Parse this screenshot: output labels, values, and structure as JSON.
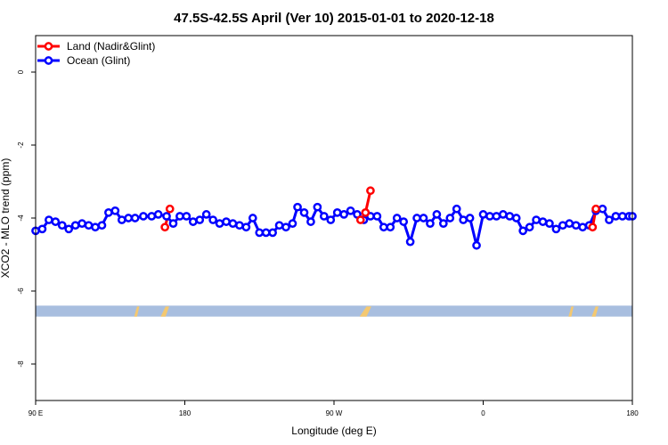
{
  "chart_data": {
    "type": "line",
    "title": "47.5S-42.5S April (Ver 10)   2015-01-01 to 2020-12-18",
    "xlabel": "Longitude (deg E)",
    "ylabel": "XCO2 - MLO trend (ppm)",
    "xlim": [
      90,
      450
    ],
    "ylim": [
      -9,
      1
    ],
    "x_ticks": [
      {
        "value": 90,
        "label": "90 E"
      },
      {
        "value": 180,
        "label": "180"
      },
      {
        "value": 270,
        "label": "90 W"
      },
      {
        "value": 360,
        "label": "0"
      },
      {
        "value": 450,
        "label": "180"
      }
    ],
    "y_ticks": [
      {
        "value": 0,
        "label": "0"
      },
      {
        "value": -2,
        "label": "-2"
      },
      {
        "value": -4,
        "label": "-4"
      },
      {
        "value": -6,
        "label": "-6"
      },
      {
        "value": -8,
        "label": "-8"
      }
    ],
    "legend_position": "top-left",
    "series": [
      {
        "name": "Land (Nadir&Glint)",
        "color": "#ff0000",
        "segments": [
          [
            [
              168,
              -4.25
            ],
            [
              171,
              -3.75
            ]
          ],
          [
            [
              286,
              -4.05
            ],
            [
              289,
              -3.85
            ],
            [
              292,
              -3.25
            ]
          ],
          [
            [
              426,
              -4.25
            ],
            [
              428,
              -3.75
            ]
          ]
        ]
      },
      {
        "name": "Ocean (Glint)",
        "color": "#0000ff",
        "segments": [
          [
            [
              90,
              -4.35
            ],
            [
              94,
              -4.3
            ],
            [
              98,
              -4.05
            ],
            [
              102,
              -4.1
            ],
            [
              106,
              -4.2
            ],
            [
              110,
              -4.3
            ],
            [
              114,
              -4.2
            ],
            [
              118,
              -4.15
            ],
            [
              122,
              -4.2
            ],
            [
              126,
              -4.25
            ],
            [
              130,
              -4.2
            ],
            [
              134,
              -3.85
            ],
            [
              138,
              -3.8
            ],
            [
              142,
              -4.05
            ],
            [
              146,
              -4.0
            ],
            [
              150,
              -4.0
            ],
            [
              155,
              -3.95
            ],
            [
              160,
              -3.95
            ],
            [
              164,
              -3.9
            ],
            [
              169,
              -3.95
            ],
            [
              173,
              -4.15
            ],
            [
              177,
              -3.95
            ],
            [
              181,
              -3.95
            ],
            [
              185,
              -4.1
            ],
            [
              189,
              -4.05
            ],
            [
              193,
              -3.9
            ],
            [
              197,
              -4.05
            ],
            [
              201,
              -4.15
            ],
            [
              205,
              -4.1
            ],
            [
              209,
              -4.15
            ],
            [
              213,
              -4.2
            ],
            [
              217,
              -4.25
            ],
            [
              221,
              -4.0
            ],
            [
              225,
              -4.4
            ],
            [
              229,
              -4.4
            ],
            [
              233,
              -4.4
            ],
            [
              237,
              -4.2
            ],
            [
              241,
              -4.25
            ],
            [
              245,
              -4.15
            ],
            [
              248,
              -3.7
            ],
            [
              252,
              -3.85
            ],
            [
              256,
              -4.1
            ],
            [
              260,
              -3.7
            ],
            [
              264,
              -3.95
            ],
            [
              268,
              -4.05
            ],
            [
              272,
              -3.85
            ],
            [
              276,
              -3.9
            ],
            [
              280,
              -3.8
            ],
            [
              284,
              -3.9
            ],
            [
              288,
              -4.05
            ],
            [
              292,
              -3.95
            ],
            [
              296,
              -3.95
            ],
            [
              300,
              -4.25
            ],
            [
              304,
              -4.25
            ],
            [
              308,
              -4.0
            ],
            [
              312,
              -4.1
            ],
            [
              316,
              -4.65
            ],
            [
              320,
              -4.0
            ],
            [
              324,
              -4.0
            ],
            [
              328,
              -4.15
            ],
            [
              332,
              -3.9
            ],
            [
              336,
              -4.15
            ],
            [
              340,
              -4.0
            ],
            [
              344,
              -3.75
            ],
            [
              348,
              -4.05
            ],
            [
              352,
              -4.0
            ],
            [
              356,
              -4.75
            ],
            [
              360,
              -3.9
            ],
            [
              364,
              -3.95
            ],
            [
              368,
              -3.95
            ],
            [
              372,
              -3.9
            ],
            [
              376,
              -3.95
            ],
            [
              380,
              -4.0
            ],
            [
              384,
              -4.35
            ],
            [
              388,
              -4.25
            ],
            [
              392,
              -4.05
            ],
            [
              396,
              -4.1
            ],
            [
              400,
              -4.15
            ],
            [
              404,
              -4.3
            ],
            [
              408,
              -4.2
            ],
            [
              412,
              -4.15
            ],
            [
              416,
              -4.2
            ],
            [
              420,
              -4.25
            ],
            [
              424,
              -4.2
            ],
            [
              428,
              -3.8
            ],
            [
              432,
              -3.75
            ],
            [
              436,
              -4.05
            ],
            [
              440,
              -3.95
            ],
            [
              444,
              -3.95
            ],
            [
              448,
              -3.95
            ],
            [
              452,
              -3.95
            ]
          ]
        ]
      }
    ]
  },
  "surface_strip": {
    "y_top": -6.4,
    "y_bottom": -6.7,
    "ocean_color": "#a8bedf",
    "land_color": "#f4c870",
    "land_patches": [
      [
        150,
        152
      ],
      [
        166,
        170
      ],
      [
        286,
        292
      ],
      [
        412,
        414
      ],
      [
        426,
        429
      ]
    ]
  }
}
